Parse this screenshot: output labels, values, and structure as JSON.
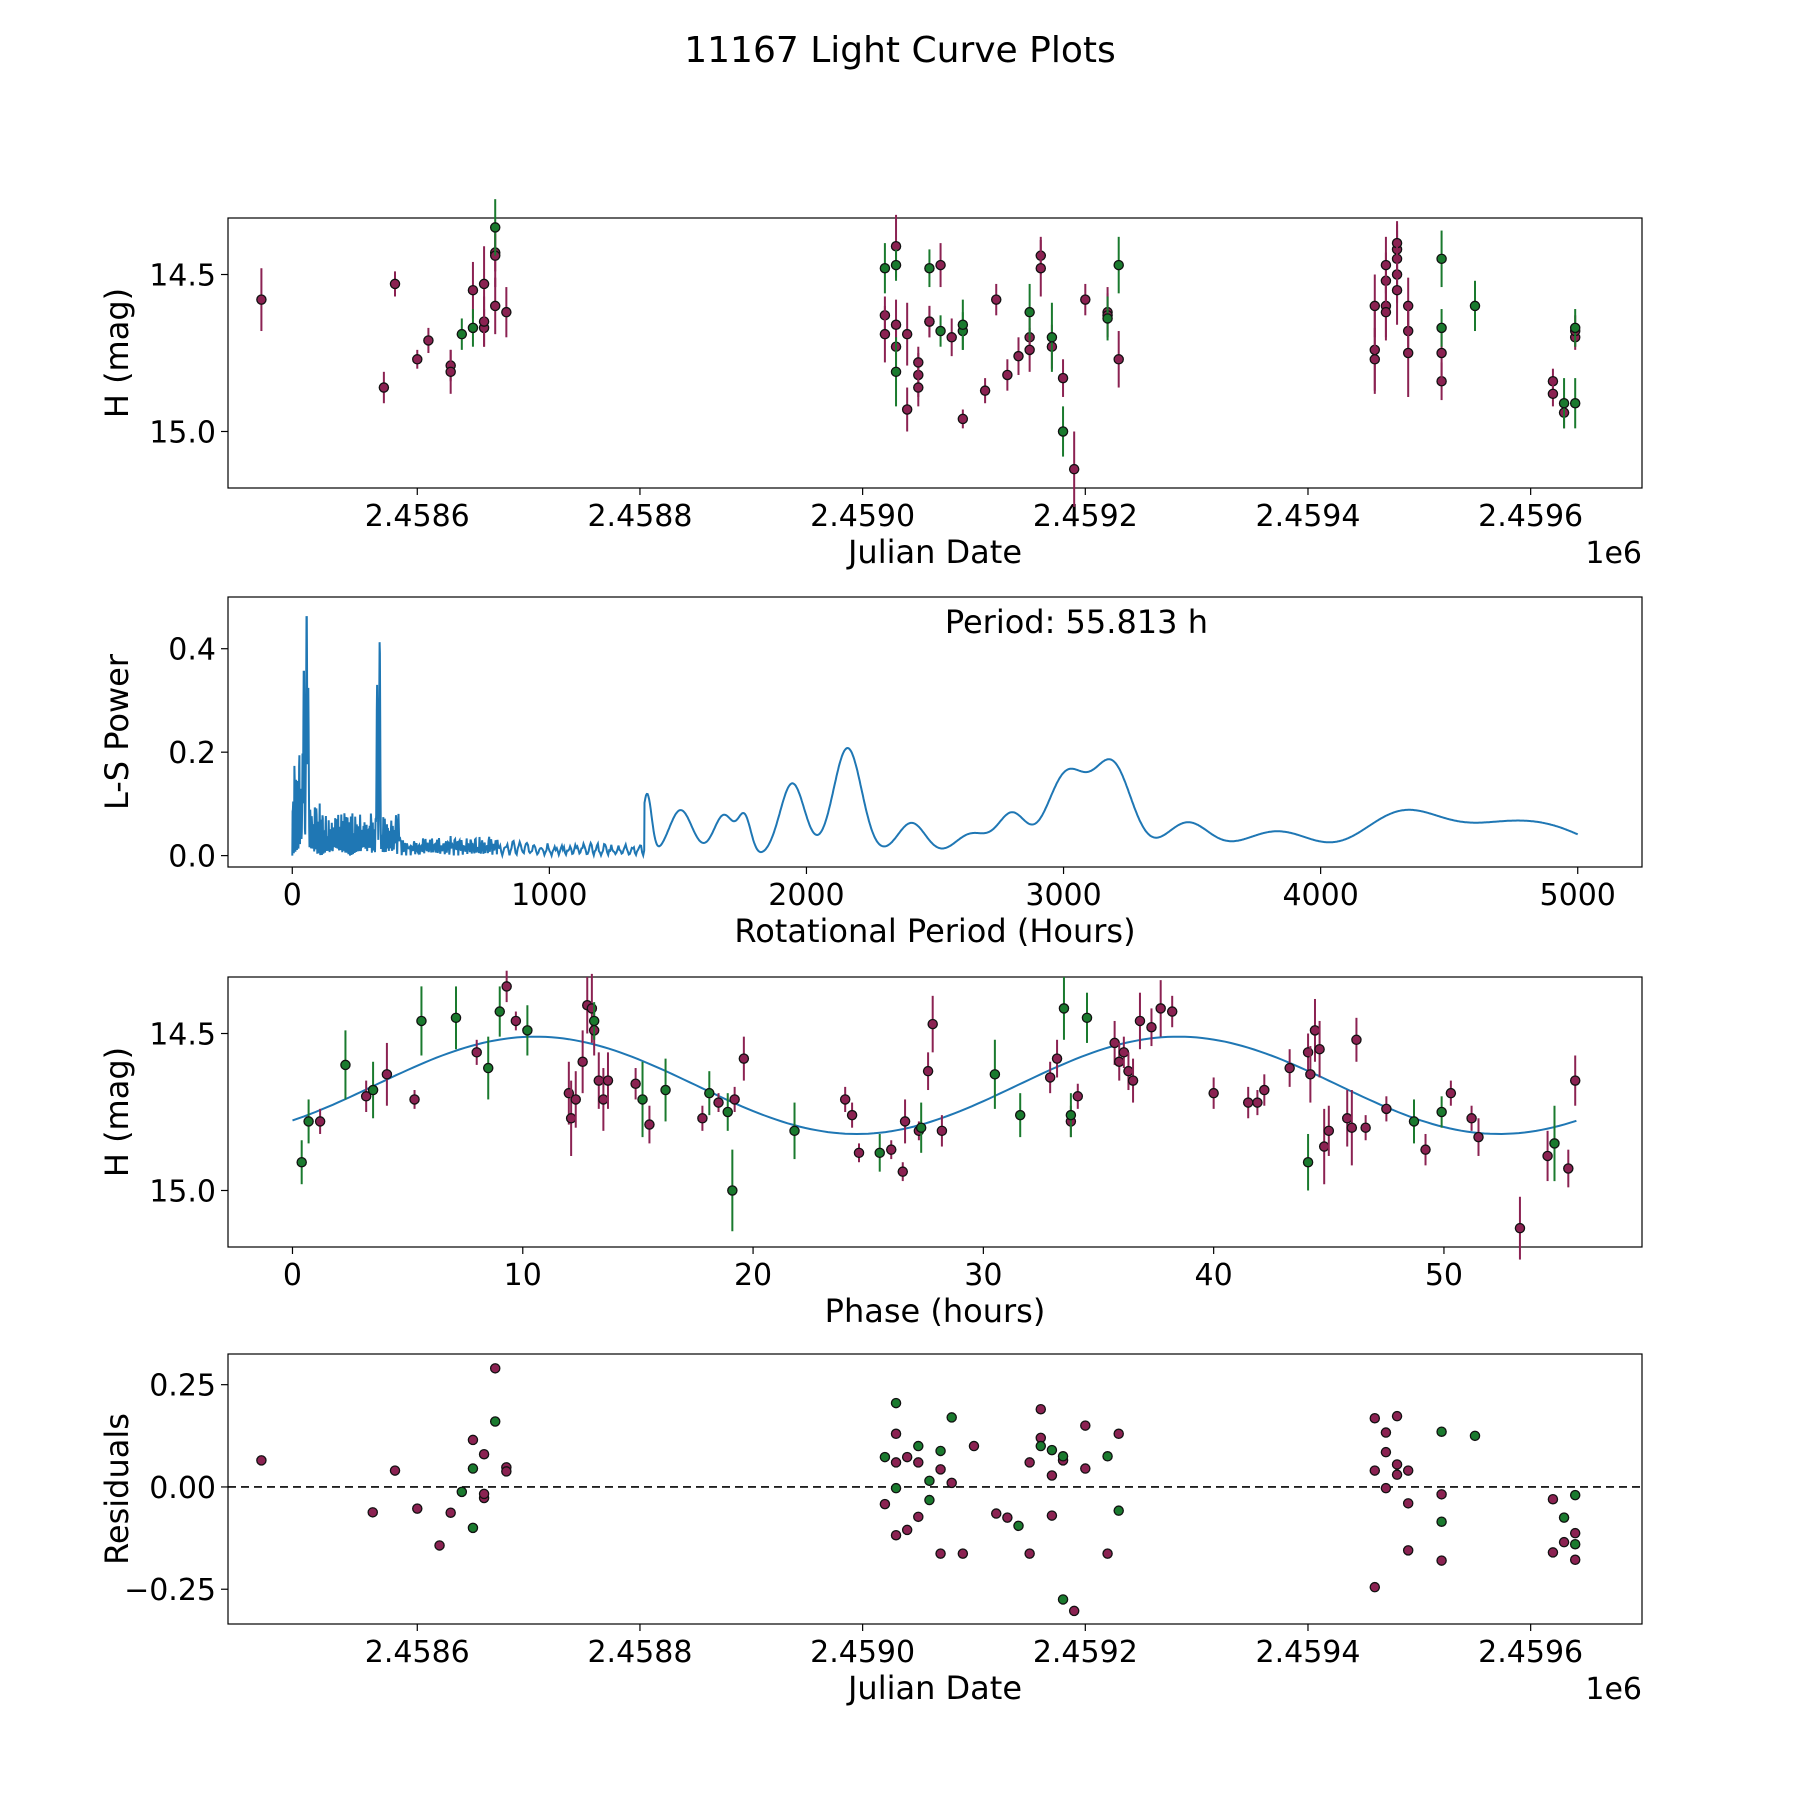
{
  "figure_title": "11167 Light Curve Plots",
  "colors": {
    "purple": "#8b2252",
    "green": "#1a7a2e",
    "periodogram": "#1f77b4",
    "fit": "#1f77b4"
  },
  "chart_data": [
    {
      "id": "lightcurve",
      "type": "scatter",
      "title": "",
      "xlabel": "Julian Date",
      "ylabel": "H (mag)",
      "x_offset_label": "1e6",
      "xlim": [
        2.45843,
        2.4597
      ],
      "ylim": [
        14.32,
        15.18
      ],
      "y_inverted": true,
      "xticks": [
        2.4586,
        2.4588,
        2.459,
        2.4592,
        2.4594,
        2.4596
      ],
      "xtick_labels": [
        "2.4586",
        "2.4588",
        "2.4590",
        "2.4592",
        "2.4594",
        "2.4596"
      ],
      "yticks": [
        15.0,
        14.5
      ],
      "ytick_labels": [
        "15.0",
        "14.5"
      ],
      "series": [
        {
          "name": "purple",
          "color": "purple",
          "x": [
            2.45846,
            2.45857,
            2.45858,
            2.4586,
            2.45861,
            2.45863,
            2.45863,
            2.45865,
            2.45866,
            2.45866,
            2.45866,
            2.45867,
            2.45867,
            2.45867,
            2.45868,
            2.45902,
            2.45902,
            2.45903,
            2.45903,
            2.45903,
            2.45904,
            2.45904,
            2.45905,
            2.45905,
            2.45905,
            2.45906,
            2.45906,
            2.45907,
            2.45908,
            2.45909,
            2.45911,
            2.45912,
            2.45913,
            2.45914,
            2.45915,
            2.45915,
            2.45916,
            2.45916,
            2.45917,
            2.45918,
            2.45919,
            2.4592,
            2.45922,
            2.45922,
            2.45923,
            2.45946,
            2.45946,
            2.45946,
            2.45947,
            2.45947,
            2.45947,
            2.45947,
            2.45948,
            2.45948,
            2.45948,
            2.45948,
            2.45948,
            2.45949,
            2.45949,
            2.45949,
            2.45952,
            2.45952,
            2.45962,
            2.45962,
            2.45963,
            2.45964,
            2.45964
          ],
          "y": [
            14.58,
            14.86,
            14.53,
            14.77,
            14.71,
            14.79,
            14.81,
            14.55,
            14.67,
            14.65,
            14.53,
            14.43,
            14.44,
            14.6,
            14.62,
            14.63,
            14.69,
            14.73,
            14.66,
            14.41,
            14.93,
            14.69,
            14.82,
            14.78,
            14.86,
            14.65,
            14.65,
            14.47,
            14.7,
            14.96,
            14.87,
            14.58,
            14.82,
            14.76,
            14.7,
            14.74,
            14.44,
            14.48,
            14.73,
            14.83,
            15.12,
            14.58,
            14.62,
            14.63,
            14.77,
            14.74,
            14.77,
            14.6,
            14.52,
            14.47,
            14.6,
            14.62,
            14.42,
            14.45,
            14.4,
            14.5,
            14.55,
            14.6,
            14.68,
            14.75,
            14.84,
            14.75,
            14.84,
            14.88,
            14.94,
            14.7,
            14.68
          ],
          "yerr": [
            0.1,
            0.05,
            0.04,
            0.03,
            0.04,
            0.05,
            0.07,
            0.09,
            0.06,
            0.08,
            0.12,
            0.06,
            0.1,
            0.09,
            0.08,
            0.06,
            0.09,
            0.07,
            0.08,
            0.1,
            0.07,
            0.1,
            0.07,
            0.05,
            0.06,
            0.05,
            0.05,
            0.07,
            0.06,
            0.03,
            0.04,
            0.05,
            0.05,
            0.06,
            0.06,
            0.07,
            0.06,
            0.09,
            0.07,
            0.06,
            0.12,
            0.05,
            0.08,
            0.07,
            0.09,
            0.14,
            0.1,
            0.1,
            0.09,
            0.09,
            0.1,
            0.09,
            0.08,
            0.09,
            0.07,
            0.09,
            0.11,
            0.09,
            0.08,
            0.14,
            0.06,
            0.08,
            0.04,
            0.04,
            0.05,
            0.04,
            0.05
          ]
        },
        {
          "name": "green",
          "color": "green",
          "x": [
            2.45864,
            2.45865,
            2.45867,
            2.45902,
            2.45903,
            2.45903,
            2.45906,
            2.45907,
            2.45909,
            2.45909,
            2.45915,
            2.45917,
            2.45918,
            2.45922,
            2.45923,
            2.45952,
            2.45952,
            2.45955,
            2.45963,
            2.45964,
            2.45964
          ],
          "y": [
            14.69,
            14.67,
            14.35,
            14.48,
            14.47,
            14.81,
            14.48,
            14.68,
            14.68,
            14.66,
            14.62,
            14.7,
            15.0,
            14.64,
            14.47,
            14.67,
            14.45,
            14.6,
            14.91,
            14.91,
            14.67
          ],
          "yerr": [
            0.05,
            0.06,
            0.09,
            0.08,
            0.05,
            0.11,
            0.06,
            0.05,
            0.06,
            0.08,
            0.09,
            0.11,
            0.08,
            0.07,
            0.09,
            0.06,
            0.09,
            0.08,
            0.08,
            0.08,
            0.06
          ]
        }
      ]
    },
    {
      "id": "periodogram",
      "type": "line",
      "title": "",
      "annotation": "Period: 55.813 h",
      "xlabel": "Rotational Period (Hours)",
      "ylabel": "L-S Power",
      "xlim": [
        -250,
        5250
      ],
      "ylim": [
        -0.022,
        0.5
      ],
      "xticks": [
        0,
        1000,
        2000,
        3000,
        4000,
        5000
      ],
      "xtick_labels": [
        "0",
        "1000",
        "2000",
        "3000",
        "4000",
        "5000"
      ],
      "yticks": [
        0.0,
        0.2,
        0.4
      ],
      "ytick_labels": [
        "0.0",
        "0.2",
        "0.4"
      ],
      "peaks": [
        {
          "x": 1380,
          "y": 0.12,
          "w": 18
        },
        {
          "x": 1510,
          "y": 0.088,
          "w": 45
        },
        {
          "x": 1680,
          "y": 0.078,
          "w": 40
        },
        {
          "x": 1760,
          "y": 0.072,
          "w": 25
        },
        {
          "x": 1945,
          "y": 0.138,
          "w": 48
        },
        {
          "x": 2160,
          "y": 0.21,
          "w": 55
        },
        {
          "x": 2410,
          "y": 0.062,
          "w": 55
        },
        {
          "x": 2640,
          "y": 0.042,
          "w": 65
        },
        {
          "x": 2800,
          "y": 0.078,
          "w": 55
        },
        {
          "x": 3010,
          "y": 0.155,
          "w": 75
        },
        {
          "x": 3190,
          "y": 0.175,
          "w": 75
        },
        {
          "x": 3480,
          "y": 0.06,
          "w": 85
        },
        {
          "x": 3820,
          "y": 0.045,
          "w": 140
        },
        {
          "x": 4340,
          "y": 0.085,
          "w": 160
        },
        {
          "x": 4800,
          "y": 0.068,
          "w": 190
        }
      ],
      "spikes": [
        {
          "x": 55.8,
          "y": 0.48
        },
        {
          "x": 45,
          "y": 0.37
        },
        {
          "x": 62,
          "y": 0.33
        },
        {
          "x": 340,
          "y": 0.42
        },
        {
          "x": 330,
          "y": 0.33
        }
      ]
    },
    {
      "id": "phased",
      "type": "scatter",
      "title": "",
      "xlabel": "Phase (hours)",
      "ylabel": "H (mag)",
      "xlim": [
        -2.8,
        58.6
      ],
      "ylim": [
        14.32,
        15.18
      ],
      "y_inverted": true,
      "xticks": [
        0,
        10,
        20,
        30,
        40,
        50
      ],
      "xtick_labels": [
        "0",
        "10",
        "20",
        "30",
        "40",
        "50"
      ],
      "yticks": [
        15.0,
        14.5
      ],
      "ytick_labels": [
        "15.0",
        "14.5"
      ],
      "fit": {
        "mean": 14.665,
        "amp": 0.155,
        "phase_hours": 24.5,
        "period_hours": 27.9,
        "x_range": [
          0,
          55.8
        ]
      },
      "series": [
        {
          "name": "purple",
          "color": "purple",
          "x": [
            1.2,
            3.2,
            4.1,
            5.3,
            8.0,
            9.3,
            9.7,
            12.0,
            12.1,
            12.3,
            12.6,
            12.8,
            13.0,
            13.1,
            13.3,
            13.5,
            13.7,
            14.9,
            15.5,
            17.8,
            18.5,
            19.2,
            19.6,
            24.0,
            24.3,
            24.6,
            26.0,
            26.5,
            26.6,
            27.2,
            27.6,
            27.8,
            28.2,
            32.9,
            33.2,
            33.8,
            34.1,
            35.7,
            35.9,
            36.1,
            36.3,
            36.5,
            36.8,
            37.3,
            37.7,
            38.2,
            40.0,
            41.5,
            41.9,
            42.2,
            43.3,
            44.1,
            44.2,
            44.4,
            44.6,
            44.8,
            45.0,
            45.8,
            46.0,
            46.2,
            46.6,
            47.5,
            49.2,
            50.3,
            51.2,
            51.5,
            53.3,
            54.5,
            55.4,
            55.7
          ],
          "y": [
            14.78,
            14.7,
            14.63,
            14.71,
            14.56,
            14.35,
            14.46,
            14.69,
            14.77,
            14.71,
            14.59,
            14.41,
            14.42,
            14.49,
            14.65,
            14.71,
            14.65,
            14.66,
            14.79,
            14.77,
            14.72,
            14.71,
            14.58,
            14.71,
            14.76,
            14.88,
            14.87,
            14.94,
            14.78,
            14.81,
            14.62,
            14.47,
            14.81,
            14.64,
            14.58,
            14.78,
            14.7,
            14.53,
            14.59,
            14.56,
            14.62,
            14.65,
            14.46,
            14.48,
            14.42,
            14.43,
            14.69,
            14.72,
            14.72,
            14.68,
            14.61,
            14.56,
            14.63,
            14.49,
            14.55,
            14.86,
            14.81,
            14.77,
            14.8,
            14.52,
            14.8,
            14.74,
            14.87,
            14.69,
            14.77,
            14.83,
            15.12,
            14.89,
            14.93,
            14.65
          ],
          "yerr": [
            0.04,
            0.05,
            0.1,
            0.03,
            0.04,
            0.05,
            0.03,
            0.1,
            0.12,
            0.09,
            0.1,
            0.09,
            0.11,
            0.08,
            0.09,
            0.1,
            0.09,
            0.05,
            0.06,
            0.04,
            0.03,
            0.04,
            0.07,
            0.04,
            0.04,
            0.03,
            0.03,
            0.03,
            0.07,
            0.03,
            0.06,
            0.09,
            0.05,
            0.05,
            0.06,
            0.05,
            0.04,
            0.07,
            0.06,
            0.05,
            0.06,
            0.07,
            0.09,
            0.06,
            0.09,
            0.05,
            0.05,
            0.05,
            0.04,
            0.05,
            0.06,
            0.06,
            0.09,
            0.1,
            0.09,
            0.12,
            0.08,
            0.09,
            0.12,
            0.07,
            0.04,
            0.04,
            0.05,
            0.04,
            0.04,
            0.06,
            0.1,
            0.08,
            0.06,
            0.08
          ]
        },
        {
          "name": "green",
          "color": "green",
          "x": [
            0.4,
            0.7,
            2.3,
            3.5,
            5.6,
            7.1,
            8.5,
            9.0,
            10.2,
            13.1,
            15.2,
            16.2,
            18.1,
            18.9,
            19.1,
            21.8,
            25.5,
            27.3,
            30.5,
            31.6,
            33.5,
            33.8,
            34.5,
            44.1,
            48.7,
            49.9,
            54.8
          ],
          "y": [
            14.91,
            14.78,
            14.6,
            14.68,
            14.46,
            14.45,
            14.61,
            14.43,
            14.49,
            14.46,
            14.71,
            14.68,
            14.69,
            14.75,
            15.0,
            14.81,
            14.88,
            14.8,
            14.63,
            14.76,
            14.42,
            14.76,
            14.45,
            14.91,
            14.78,
            14.75,
            14.85
          ],
          "yerr": [
            0.07,
            0.07,
            0.11,
            0.09,
            0.11,
            0.1,
            0.1,
            0.08,
            0.08,
            0.06,
            0.12,
            0.1,
            0.07,
            0.06,
            0.13,
            0.09,
            0.06,
            0.08,
            0.11,
            0.07,
            0.1,
            0.07,
            0.08,
            0.09,
            0.07,
            0.05,
            0.12
          ]
        }
      ]
    },
    {
      "id": "residuals",
      "type": "scatter",
      "title": "",
      "xlabel": "Julian Date",
      "ylabel": "Residuals",
      "x_offset_label": "1e6",
      "xlim": [
        2.45843,
        2.4597
      ],
      "ylim": [
        -0.335,
        0.325
      ],
      "xticks": [
        2.4586,
        2.4588,
        2.459,
        2.4592,
        2.4594,
        2.4596
      ],
      "xtick_labels": [
        "2.4586",
        "2.4588",
        "2.4590",
        "2.4592",
        "2.4594",
        "2.4596"
      ],
      "yticks": [
        0.25,
        0.0,
        -0.25
      ],
      "ytick_labels": [
        "0.25",
        "0.00",
        "−0.25"
      ],
      "zero_line": 0,
      "series": [
        {
          "name": "purple",
          "color": "purple",
          "x": [
            2.45846,
            2.45856,
            2.45858,
            2.4586,
            2.45862,
            2.45863,
            2.45865,
            2.45866,
            2.45866,
            2.45866,
            2.45867,
            2.45868,
            2.45868,
            2.45902,
            2.45903,
            2.45903,
            2.45903,
            2.45904,
            2.45904,
            2.45905,
            2.45905,
            2.45907,
            2.45907,
            2.45908,
            2.45909,
            2.4591,
            2.45912,
            2.45913,
            2.45915,
            2.45915,
            2.45916,
            2.45916,
            2.45917,
            2.45917,
            2.45918,
            2.45919,
            2.4592,
            2.4592,
            2.45922,
            2.45923,
            2.45946,
            2.45946,
            2.45946,
            2.45947,
            2.45947,
            2.45947,
            2.45948,
            2.45948,
            2.45948,
            2.45949,
            2.45949,
            2.45949,
            2.45952,
            2.45952,
            2.45962,
            2.45962,
            2.45963,
            2.45964,
            2.45964
          ],
          "y": [
            0.065,
            -0.062,
            0.04,
            -0.053,
            -0.143,
            -0.063,
            0.115,
            -0.027,
            0.08,
            -0.017,
            0.29,
            0.048,
            0.038,
            -0.042,
            0.13,
            0.06,
            -0.118,
            0.073,
            -0.105,
            -0.073,
            0.06,
            -0.163,
            0.043,
            0.01,
            -0.163,
            0.1,
            -0.065,
            -0.075,
            0.06,
            -0.163,
            0.19,
            0.12,
            0.028,
            -0.07,
            0.065,
            -0.303,
            0.15,
            0.045,
            -0.163,
            0.13,
            0.168,
            -0.245,
            0.04,
            0.085,
            0.133,
            -0.003,
            0.173,
            0.03,
            0.055,
            -0.155,
            -0.04,
            0.04,
            -0.018,
            -0.18,
            -0.03,
            -0.16,
            -0.135,
            -0.178,
            -0.113
          ]
        },
        {
          "name": "green",
          "color": "green",
          "x": [
            2.45864,
            2.45865,
            2.45865,
            2.45867,
            2.45902,
            2.45903,
            2.45903,
            2.45905,
            2.45906,
            2.45906,
            2.45907,
            2.45908,
            2.45914,
            2.45916,
            2.45917,
            2.45918,
            2.45918,
            2.45922,
            2.45923,
            2.45952,
            2.45952,
            2.45955,
            2.45963,
            2.45964,
            2.45964
          ],
          "y": [
            -0.012,
            0.045,
            -0.1,
            0.16,
            0.073,
            0.205,
            -0.003,
            0.1,
            0.015,
            -0.032,
            0.088,
            0.17,
            -0.095,
            0.1,
            0.09,
            0.075,
            -0.275,
            0.075,
            -0.058,
            0.135,
            -0.085,
            0.125,
            -0.075,
            -0.02,
            -0.14
          ]
        }
      ]
    }
  ]
}
